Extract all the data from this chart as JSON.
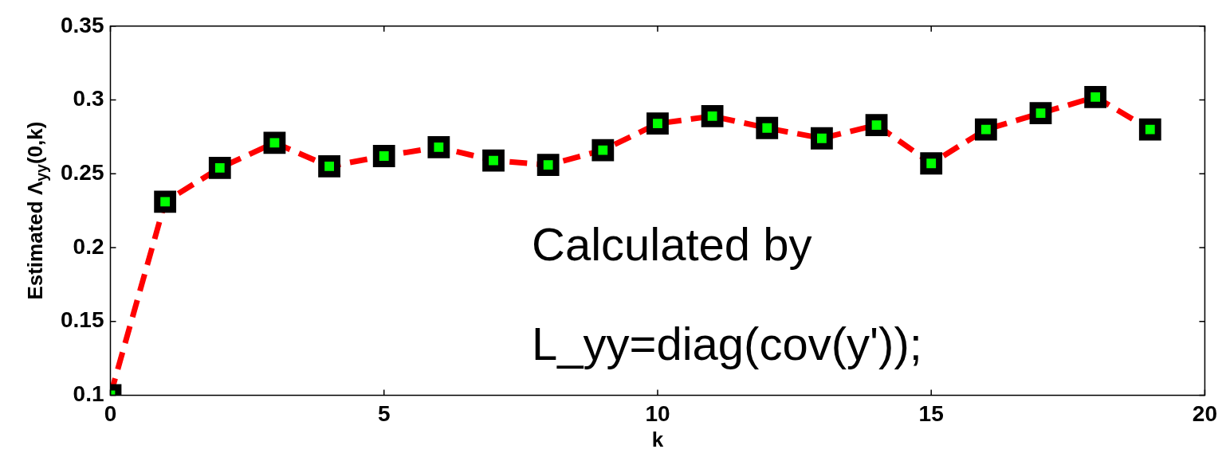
{
  "chart_data": {
    "type": "line",
    "xlabel": "k",
    "ylabel": "Estimated Λ$_{yy}$(0,k)",
    "annotations": [
      "Calculated by",
      "L_yy=diag(cov(y'));"
    ],
    "series": [
      {
        "color": "#ff0000",
        "x": [
          0,
          1,
          2,
          3,
          4,
          5,
          6,
          7,
          8,
          9,
          10,
          11,
          12,
          13,
          14,
          15,
          16,
          17,
          18,
          19
        ],
        "values": [
          0.1,
          0.231,
          0.254,
          0.271,
          0.255,
          0.262,
          0.268,
          0.259,
          0.256,
          0.266,
          0.284,
          0.289,
          0.281,
          0.274,
          0.283,
          0.257,
          0.28,
          0.291,
          0.302,
          0.28
        ]
      }
    ],
    "xlim": [
      0,
      20
    ],
    "xticks": [
      0,
      5,
      10,
      15,
      20
    ],
    "ylim": [
      0.1,
      0.35
    ],
    "yticks": [
      0.1,
      0.15,
      0.2,
      0.25,
      0.3,
      0.35
    ],
    "grid": false,
    "legend": false,
    "marker": "square",
    "line_style": "dashed"
  }
}
